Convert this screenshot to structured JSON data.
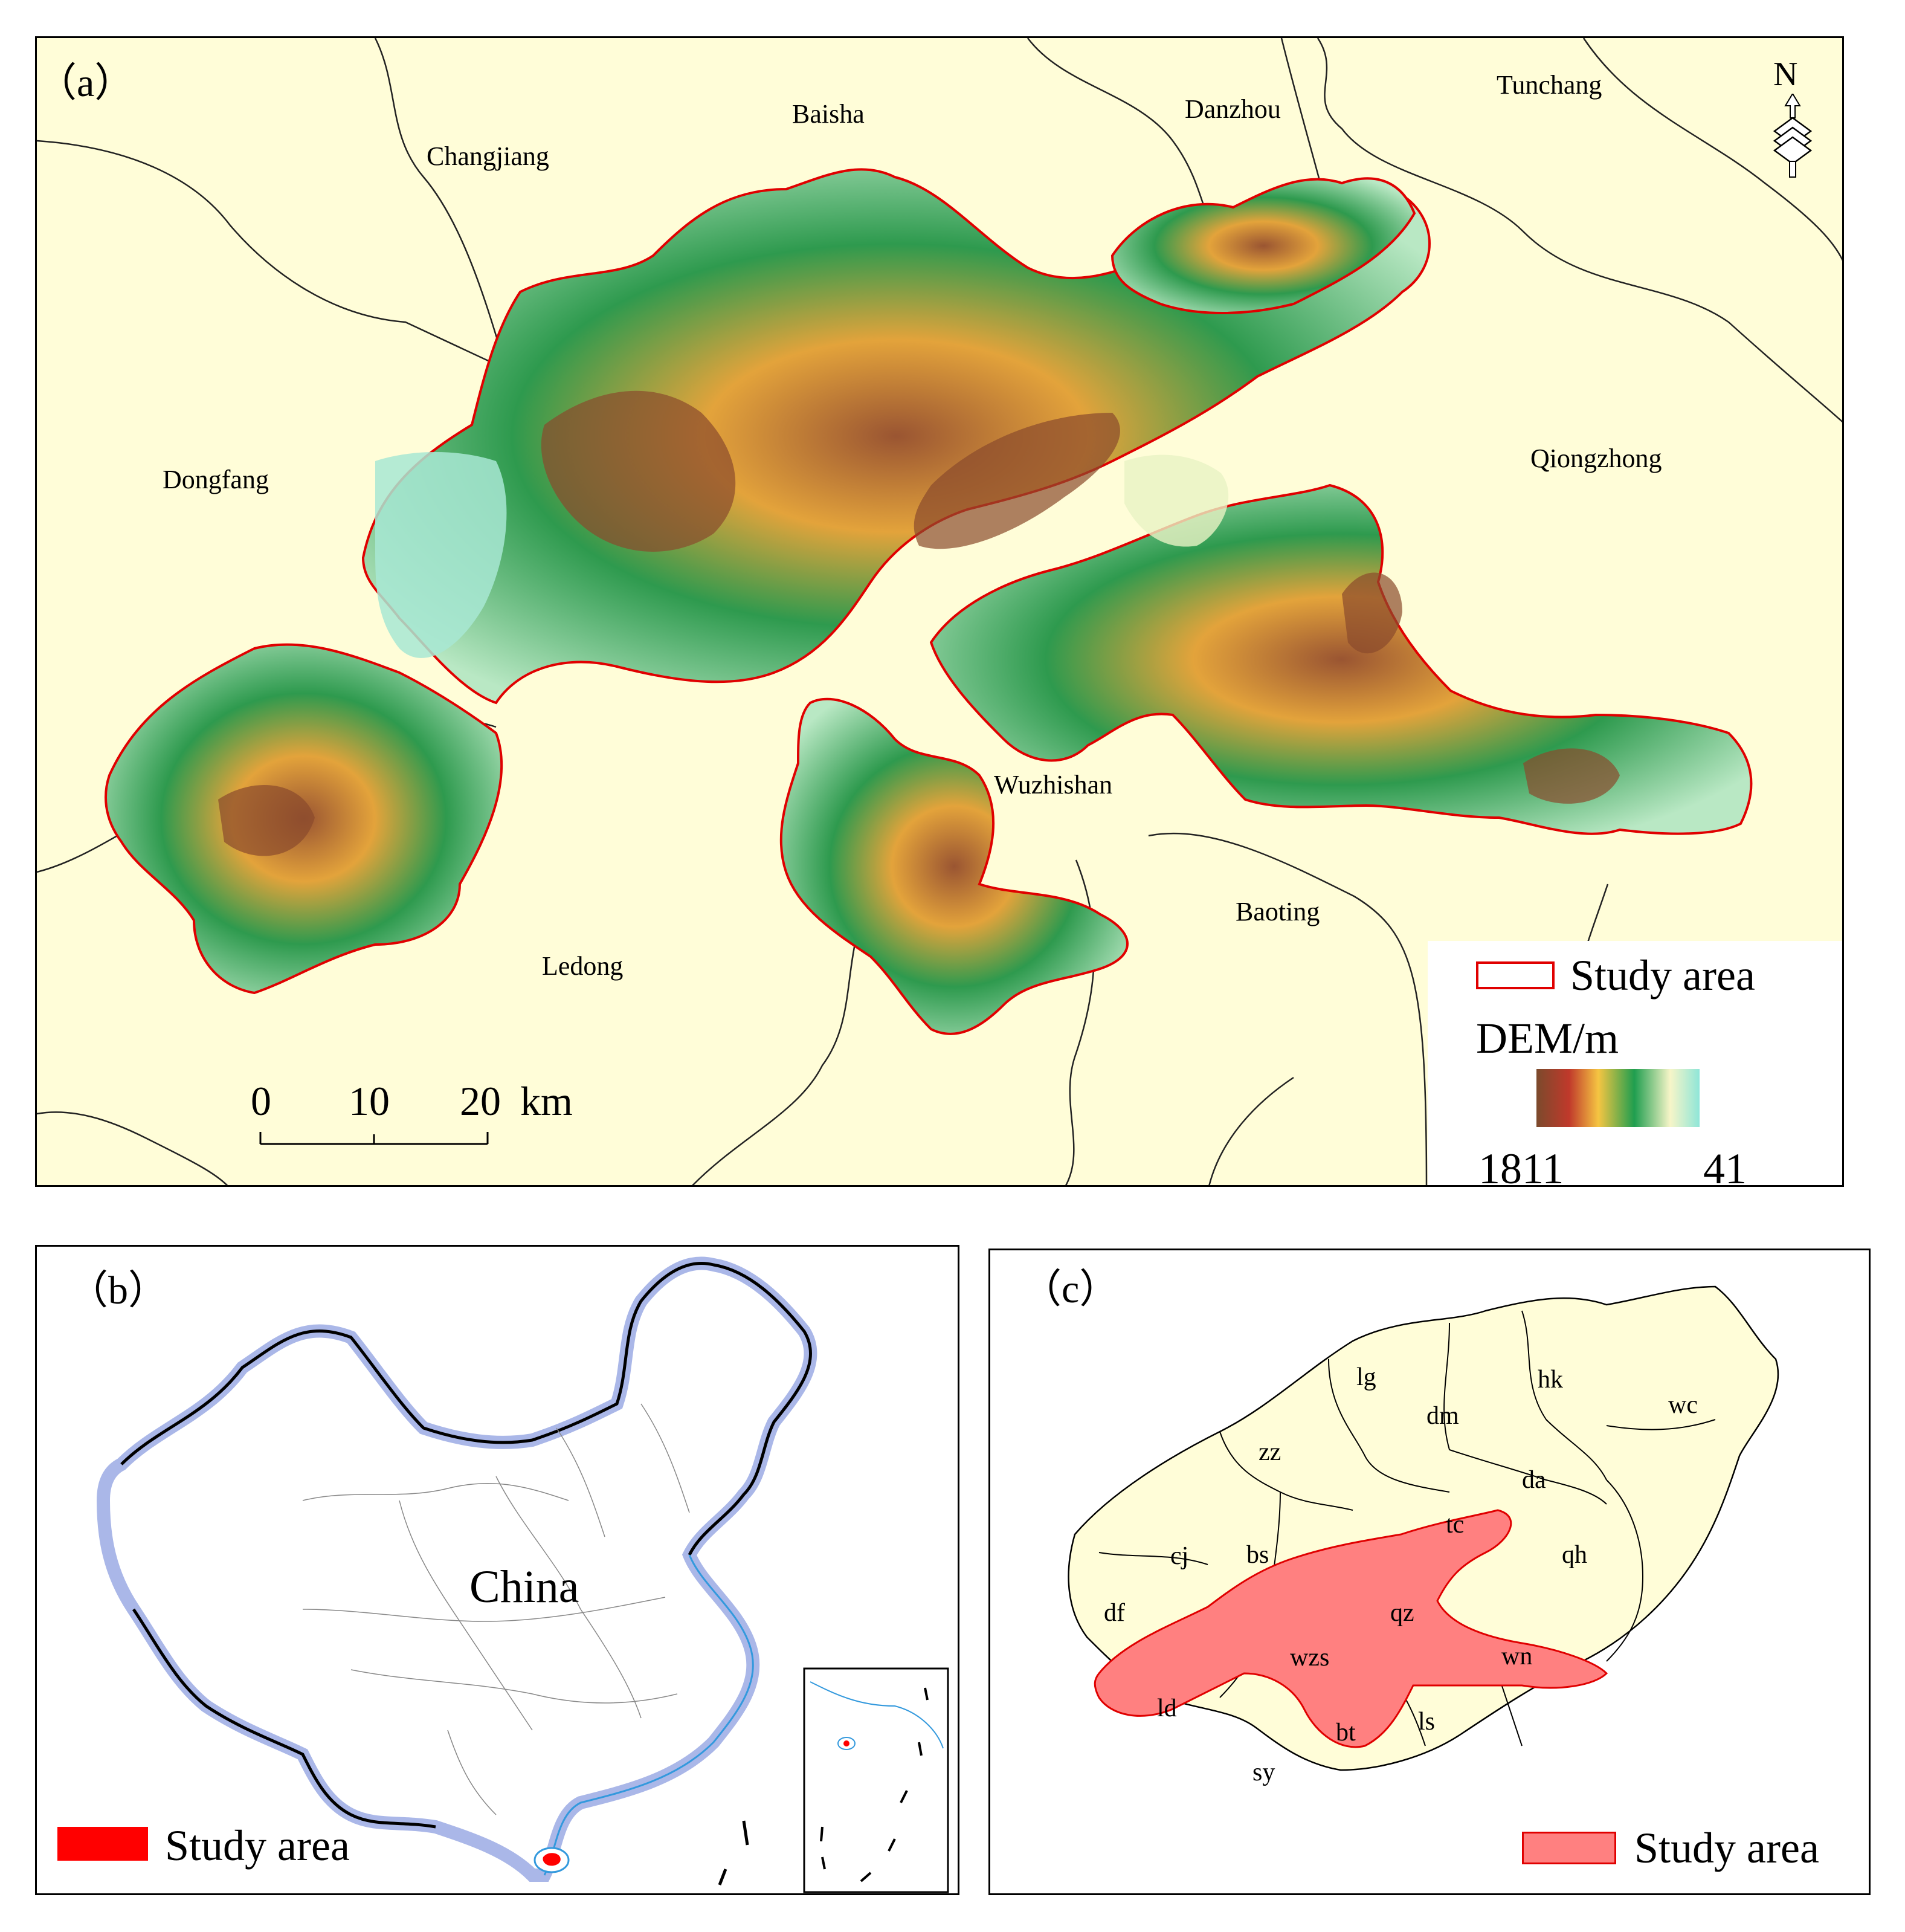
{
  "panels": {
    "a": {
      "label": "（a）",
      "places": {
        "baisha": "Baisha",
        "danzhou": "Danzhou",
        "tunchang": "Tunchang",
        "changjiang": "Changjiang",
        "dongfang": "Dongfang",
        "qiongzhong": "Qiongzhong",
        "wuzhishan": "Wuzhishan",
        "baoting": "Baoting",
        "ledong": "Ledong"
      },
      "north_arrow": "N",
      "scale_bar": {
        "ticks": [
          "0",
          "10",
          "20"
        ],
        "unit": "km"
      },
      "legend": {
        "study_area": "Study area",
        "dem_title": "DEM/m",
        "dem_max": "1811",
        "dem_min": "41",
        "dem_colors": [
          "#7b4a2c",
          "#c0392b",
          "#f5c542",
          "#1f9e4f",
          "#f7f5c8",
          "#8fe6d8"
        ]
      }
    },
    "b": {
      "label": "（b）",
      "country": "China",
      "legend": {
        "study_area": "Study area",
        "color": "#ff0000"
      }
    },
    "c": {
      "label": "（c）",
      "counties": {
        "lg": "lg",
        "dm": "dm",
        "hk": "hk",
        "wc": "wc",
        "zz": "zz",
        "da": "da",
        "tc": "tc",
        "cj": "cj",
        "bs": "bs",
        "qh": "qh",
        "df": "df",
        "qz": "qz",
        "wzs": "wzs",
        "wn": "wn",
        "ld": "ld",
        "bt": "bt",
        "ls": "ls",
        "sy": "sy"
      },
      "legend": {
        "study_area": "Study area",
        "color": "#ff8080"
      }
    }
  },
  "colors": {
    "land": "#fffdd8",
    "study_outline": "#e00000",
    "china_border_glow": "#aab7e8",
    "river": "#3399dd"
  }
}
